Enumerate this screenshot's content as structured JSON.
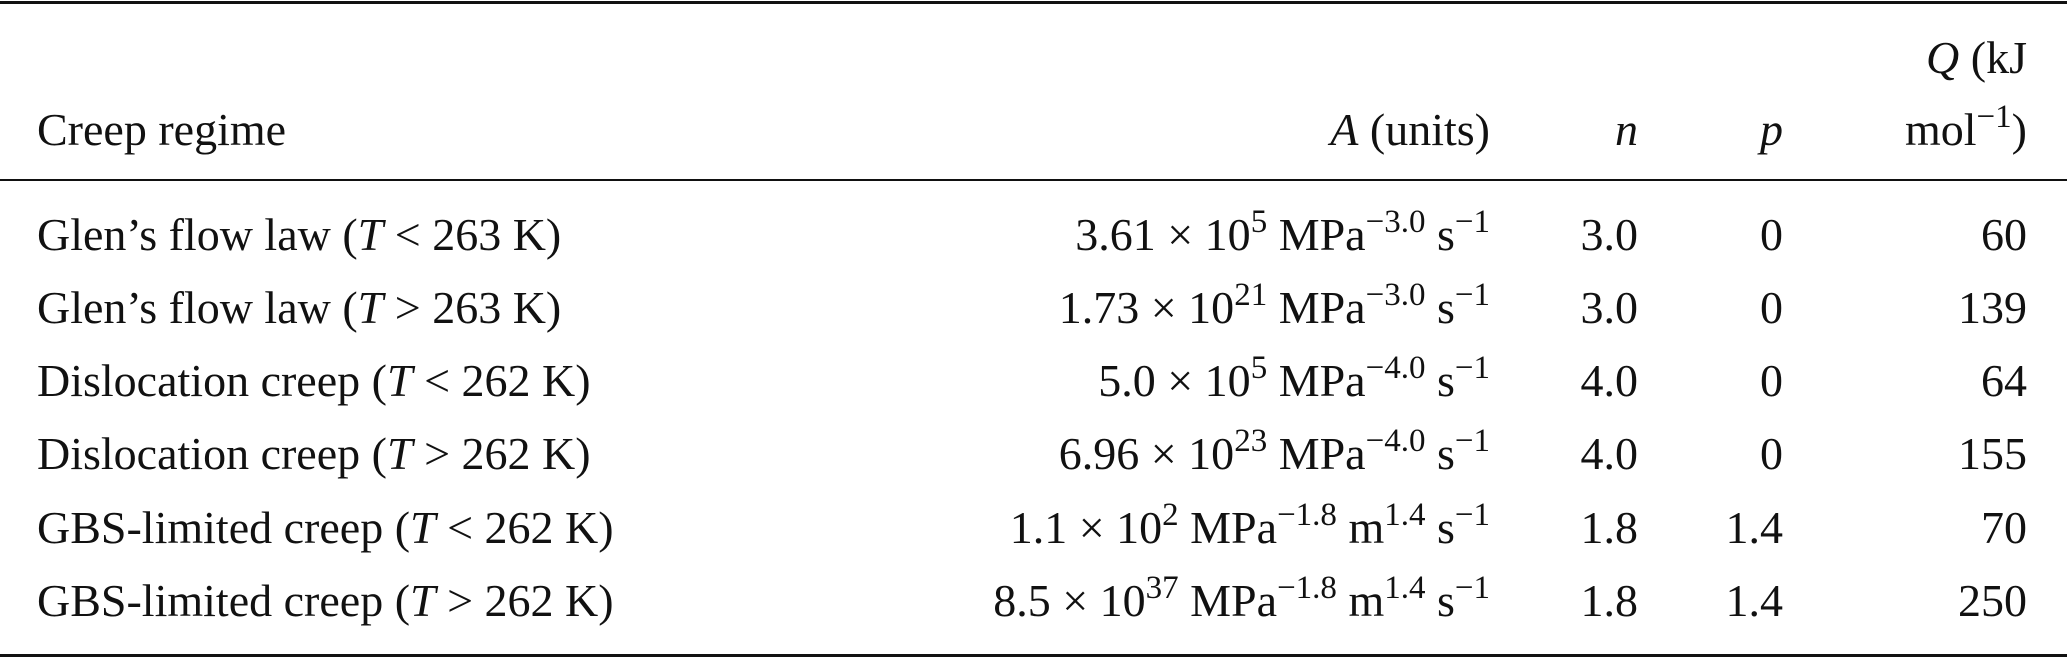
{
  "table": {
    "header": [
      [
        {
          "t": "Creep regime"
        }
      ],
      [
        {
          "i": "A"
        },
        {
          "t": " (units)"
        }
      ],
      [
        {
          "i": "n"
        }
      ],
      [
        {
          "i": "p"
        }
      ],
      {
        "lines": [
          [
            {
              "i": "Q"
            },
            {
              "t": " (kJ"
            }
          ],
          [
            {
              "t": "mol"
            },
            {
              "sup": "−1"
            },
            {
              "t": ")"
            }
          ]
        ]
      }
    ],
    "rows": [
      [
        [
          {
            "t": "Glen’s flow law ("
          },
          {
            "i": "T"
          },
          {
            "t": " < 263 K)"
          }
        ],
        [
          {
            "t": "3.61 × 10"
          },
          {
            "sup": "5"
          },
          {
            "t": " MPa"
          },
          {
            "sup": "−3.0"
          },
          {
            "t": " s"
          },
          {
            "sup": "−1"
          }
        ],
        [
          {
            "t": "3.0"
          }
        ],
        [
          {
            "t": "0"
          }
        ],
        [
          {
            "t": "60"
          }
        ]
      ],
      [
        [
          {
            "t": "Glen’s flow law ("
          },
          {
            "i": "T"
          },
          {
            "t": " > 263 K)"
          }
        ],
        [
          {
            "t": "1.73 × 10"
          },
          {
            "sup": "21"
          },
          {
            "t": " MPa"
          },
          {
            "sup": "−3.0"
          },
          {
            "t": " s"
          },
          {
            "sup": "−1"
          }
        ],
        [
          {
            "t": "3.0"
          }
        ],
        [
          {
            "t": "0"
          }
        ],
        [
          {
            "t": "139"
          }
        ]
      ],
      [
        [
          {
            "t": "Dislocation creep ("
          },
          {
            "i": "T"
          },
          {
            "t": " < 262 K)"
          }
        ],
        [
          {
            "t": "5.0 × 10"
          },
          {
            "sup": "5"
          },
          {
            "t": " MPa"
          },
          {
            "sup": "−4.0"
          },
          {
            "t": " s"
          },
          {
            "sup": "−1"
          }
        ],
        [
          {
            "t": "4.0"
          }
        ],
        [
          {
            "t": "0"
          }
        ],
        [
          {
            "t": "64"
          }
        ]
      ],
      [
        [
          {
            "t": "Dislocation creep ("
          },
          {
            "i": "T"
          },
          {
            "t": " > 262 K)"
          }
        ],
        [
          {
            "t": "6.96 × 10"
          },
          {
            "sup": "23"
          },
          {
            "t": " MPa"
          },
          {
            "sup": "−4.0"
          },
          {
            "t": " s"
          },
          {
            "sup": "−1"
          }
        ],
        [
          {
            "t": "4.0"
          }
        ],
        [
          {
            "t": "0"
          }
        ],
        [
          {
            "t": "155"
          }
        ]
      ],
      [
        [
          {
            "t": "GBS-limited creep ("
          },
          {
            "i": "T"
          },
          {
            "t": " < 262 K)"
          }
        ],
        [
          {
            "t": "1.1 × 10"
          },
          {
            "sup": "2"
          },
          {
            "t": " MPa"
          },
          {
            "sup": "−1.8"
          },
          {
            "t": " m"
          },
          {
            "sup": "1.4"
          },
          {
            "t": " s"
          },
          {
            "sup": "−1"
          }
        ],
        [
          {
            "t": "1.8"
          }
        ],
        [
          {
            "t": "1.4"
          }
        ],
        [
          {
            "t": "70"
          }
        ]
      ],
      [
        [
          {
            "t": "GBS-limited creep ("
          },
          {
            "i": "T"
          },
          {
            "t": " > 262 K)"
          }
        ],
        [
          {
            "t": "8.5 × 10"
          },
          {
            "sup": "37"
          },
          {
            "t": " MPa"
          },
          {
            "sup": "−1.8"
          },
          {
            "t": " m"
          },
          {
            "sup": "1.4"
          },
          {
            "t": " s"
          },
          {
            "sup": "−1"
          }
        ],
        [
          {
            "t": "1.8"
          }
        ],
        [
          {
            "t": "1.4"
          }
        ],
        [
          {
            "t": "250"
          }
        ]
      ]
    ]
  }
}
